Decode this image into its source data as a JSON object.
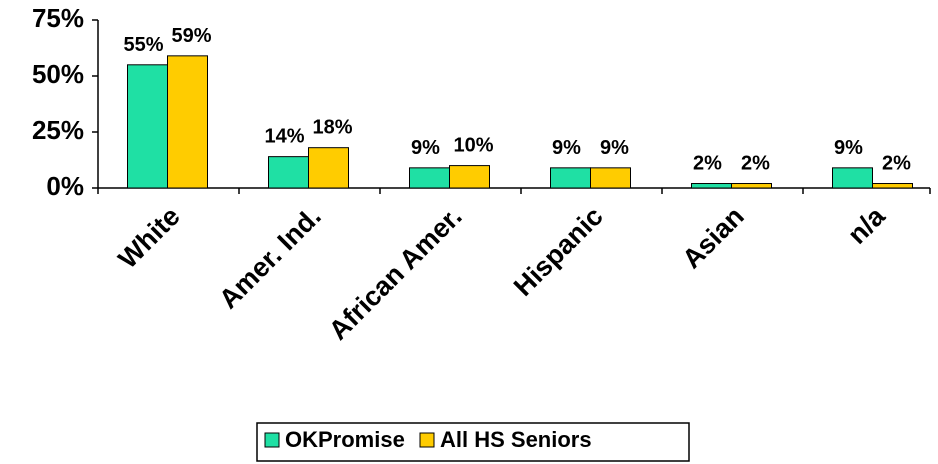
{
  "chart_data": {
    "type": "bar",
    "categories": [
      "White",
      "Amer. Ind.",
      "African Amer.",
      "Hispanic",
      "Asian",
      "n/a"
    ],
    "series": [
      {
        "name": "OKPromise",
        "color": "#1fe0a4",
        "values": [
          55,
          14,
          9,
          9,
          2,
          9
        ],
        "value_labels": [
          "55%",
          "14%",
          "9%",
          "9%",
          "2%",
          "9%"
        ]
      },
      {
        "name": "All HS Seniors",
        "color": "#ffcc00",
        "values": [
          59,
          18,
          10,
          9,
          2,
          2
        ],
        "value_labels": [
          "59%",
          "18%",
          "10%",
          "9%",
          "2%",
          "2%"
        ]
      }
    ],
    "ylim": [
      0,
      75
    ],
    "yticks": [
      {
        "value": 0,
        "label": "0%"
      },
      {
        "value": 25,
        "label": "25%"
      },
      {
        "value": 50,
        "label": "50%"
      },
      {
        "value": 75,
        "label": "75%"
      }
    ],
    "legend": "bottom"
  }
}
